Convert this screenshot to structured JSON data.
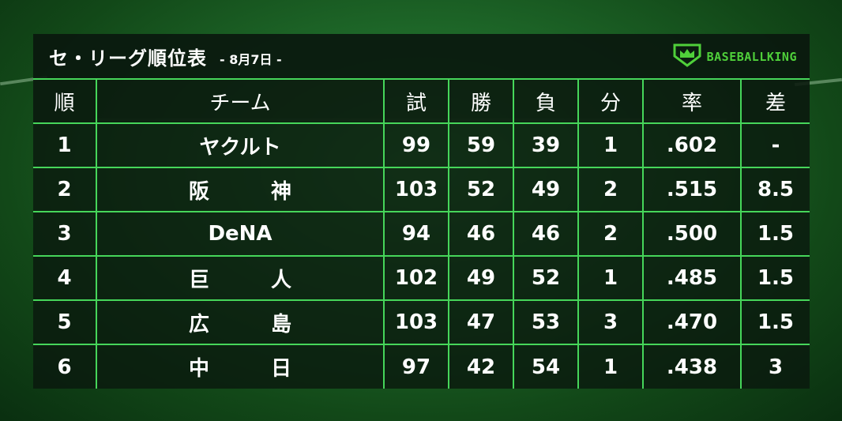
{
  "header": {
    "title": "セ・リーグ順位表",
    "date": "- 8月7日 -",
    "logo_text": "BASEBALLKING",
    "logo_icon": "crown-shield-icon",
    "accent_color": "#46d65a"
  },
  "columns": [
    "順",
    "チーム",
    "試",
    "勝",
    "負",
    "分",
    "率",
    "差"
  ],
  "rows": [
    {
      "rank": "1",
      "team": "ヤクルト",
      "team_a": "",
      "team_b": "",
      "games": "99",
      "wins": "59",
      "losses": "39",
      "ties": "1",
      "pct": ".602",
      "gb": "-"
    },
    {
      "rank": "2",
      "team": "",
      "team_a": "阪",
      "team_b": "神",
      "games": "103",
      "wins": "52",
      "losses": "49",
      "ties": "2",
      "pct": ".515",
      "gb": "8.5"
    },
    {
      "rank": "3",
      "team": "DeNA",
      "team_a": "",
      "team_b": "",
      "games": "94",
      "wins": "46",
      "losses": "46",
      "ties": "2",
      "pct": ".500",
      "gb": "1.5"
    },
    {
      "rank": "4",
      "team": "",
      "team_a": "巨",
      "team_b": "人",
      "games": "102",
      "wins": "49",
      "losses": "52",
      "ties": "1",
      "pct": ".485",
      "gb": "1.5"
    },
    {
      "rank": "5",
      "team": "",
      "team_a": "広",
      "team_b": "島",
      "games": "103",
      "wins": "47",
      "losses": "53",
      "ties": "3",
      "pct": ".470",
      "gb": "1.5"
    },
    {
      "rank": "6",
      "team": "",
      "team_a": "中",
      "team_b": "日",
      "games": "97",
      "wins": "42",
      "losses": "54",
      "ties": "1",
      "pct": ".438",
      "gb": "3"
    }
  ]
}
